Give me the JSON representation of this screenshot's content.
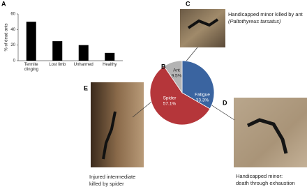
{
  "chart_data": [
    {
      "type": "bar",
      "ylabel": "% of dead ants",
      "categories": [
        "Termite clinging",
        "Lost limb",
        "Unharmed",
        "Healthy"
      ],
      "values": [
        50,
        25,
        20,
        10
      ],
      "color": "#000000",
      "ylim": [
        0,
        60
      ],
      "yticks": [
        0,
        20,
        40,
        60
      ]
    },
    {
      "type": "pie",
      "categories": [
        "Fatigue",
        "Spider",
        "Ant"
      ],
      "values": [
        33.3,
        57.1,
        9.5
      ],
      "value_labels": [
        "33.3%",
        "57.1%",
        "9.5%"
      ],
      "colors": [
        "#3a64a0",
        "#b5363a",
        "#b4b4b4"
      ]
    }
  ],
  "panel_labels": [
    "A",
    "B",
    "C",
    "D",
    "E"
  ],
  "captions": {
    "C": [
      "Handicapped minor killed by ant",
      "(Paltothyreus tarsatus)"
    ],
    "D": [
      "Handicapped minor:",
      "death through exhaustion"
    ],
    "E": [
      "Injured intermediate",
      "killed by spider"
    ]
  }
}
